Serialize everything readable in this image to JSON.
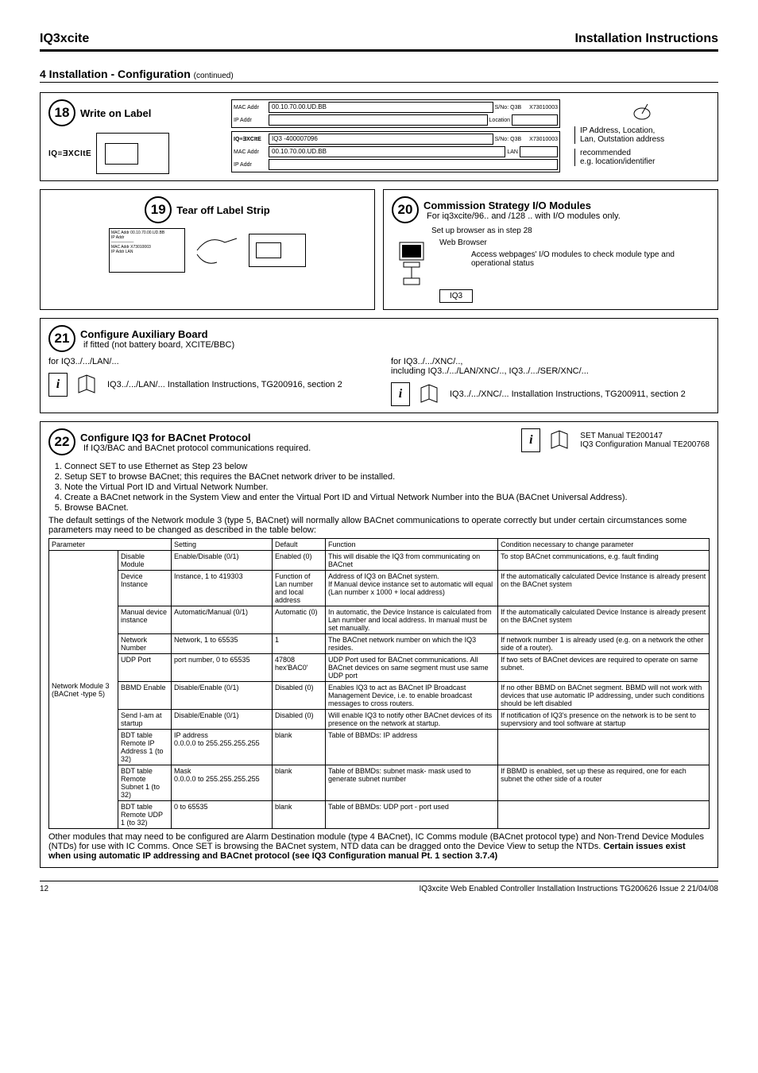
{
  "header": {
    "left": "IQ3xcite",
    "right": "Installation Instructions"
  },
  "section": {
    "title": "4 Installation - Configuration",
    "continued": "(continued)"
  },
  "step18": {
    "num": "18",
    "title": "Write on Label",
    "device_logo": "IQ≡ƎXCItE",
    "label1": {
      "mac_key": "MAC Addr",
      "mac_val": "00.10.70.00.UD.BB",
      "sno_key": "S/No:",
      "sno_val": "Q3B",
      "sno_code": "X73010003",
      "ip_key": "IP Addr",
      "loc_key": "Location"
    },
    "label2": {
      "prefix": "IQ≡ƎXCItE",
      "model": "IQ3  -400007096",
      "sno_key": "S/No:",
      "sno_val": "Q3B",
      "sno_code": "X73010003",
      "mac_key": "MAC Addr",
      "mac_val": "00.10.70.00.UD.BB",
      "lan_key": "LAN",
      "ip_key": "IP Addr"
    },
    "notes": {
      "line1": "IP Address, Location,",
      "line2": "Lan, Outstation address",
      "line3": "recommended",
      "line4": "e.g.  location/identifier"
    }
  },
  "step19": {
    "num": "19",
    "title": "Tear off Label Strip"
  },
  "step20": {
    "num": "20",
    "title": "Commission Strategy I/O Modules",
    "sub": "For iq3xcite/96.. and /128 .. with I/O  modules only.",
    "line1": "Set up browser as in step 28",
    "line2": "Web Browser",
    "line3": "Access webpages' I/O modules to check module type and operational status",
    "iq3": "IQ3"
  },
  "step21": {
    "num": "21",
    "title": "Configure Auxiliary Board",
    "sub": "if fitted (not battery board, XCITE/BBC)",
    "col1_head": "for IQ3../.../LAN/...",
    "col1_ref": "IQ3../.../LAN/... Installation Instructions, TG200916,  section 2",
    "col2_head": "for IQ3../.../XNC/..,",
    "col2_head2": "including IQ3../.../LAN/XNC/.., IQ3../.../SER/XNC/...",
    "col2_ref": "IQ3../.../XNC/... Installation Instructions, TG200911,  section 2"
  },
  "step22": {
    "num": "22",
    "title": "Configure IQ3 for BACnet Protocol",
    "sub": "If IQ3/BAC and BACnet protocol communications required.",
    "manuals": {
      "line1": "SET Manual TE200147",
      "line2": "IQ3 Configuration Manual TE200768"
    },
    "steps": [
      "Connect SET to use Ethernet as Step 23 below",
      "Setup SET to browse BACnet; this requires the BACnet network driver to be installed.",
      "Note the Virtual Port ID and Virtual Network Number.",
      "Create a BACnet network in the System View and enter the Virtual Port ID and Virtual Network Number into the BUA (BACnet Universal Address).",
      "Browse BACnet."
    ],
    "para": "The default settings of the Network module 3 (type 5, BACnet) will normally allow BACnet communications to operate correctly but under certain circumstances some parameters may need to be changed as described in the table below:",
    "table": {
      "headers": [
        "Parameter",
        "",
        "Setting",
        "Default",
        "Function",
        "Condition necessary to change parameter"
      ],
      "group_label": "Network Module 3 (BACnet -type 5)",
      "rows": [
        [
          "Disable Module",
          "Enable/Disable (0/1)",
          "Enabled (0)",
          "This will disable the IQ3 from communicating on BACnet",
          "To stop BACnet communications, e.g. fault finding"
        ],
        [
          "Device Instance",
          "Instance, 1 to 419303",
          "Function of Lan number and local address",
          "Address of IQ3 on BACnet system.\nIf Manual device instance set to automatic will equal (Lan number x 1000 + local address)",
          "If the automatically calculated Device Instance is already present on the BACnet system"
        ],
        [
          "Manual device instance",
          "Automatic/Manual (0/1)",
          "Automatic (0)",
          "In automatic, the Device Instance is calculated from Lan number and local address. In manual must be set manually.",
          "If the automatically calculated Device Instance is already present on the BACnet system"
        ],
        [
          "Network Number",
          "Network, 1 to 65535",
          "1",
          "The BACnet network number on which the IQ3 resides.",
          "If network number 1 is already used (e.g. on a network the other side of a router)."
        ],
        [
          "UDP Port",
          "port number, 0 to 65535",
          "47808 hex'BAC0'",
          "UDP Port used for BACnet communications. All BACnet devices on same segment must use same UDP port",
          "If two sets of BACnet devices are required to operate on same subnet."
        ],
        [
          "BBMD Enable",
          "Disable/Enable (0/1)",
          "Disabled (0)",
          "Enables IQ3 to act as BACnet IP Broadcast Management Device, i.e. to enable broadcast messages to cross routers.",
          "If no other BBMD on BACnet segment. BBMD will not work with devices that use automatic IP addressing, under such conditions should be left disabled"
        ],
        [
          "Send I-am at startup",
          "Disable/Enable (0/1)",
          "Disabled (0)",
          "Will enable IQ3 to notify other BACnet devices of its presence on the network at startup.",
          "If notification of IQ3's presence on the network is to be sent to supervsiory and tool software at startup"
        ],
        [
          "BDT table Remote IP Address 1 (to 32)",
          "IP address\n0.0.0.0 to 255.255.255.255",
          "blank",
          "Table of BBMDs:  IP address",
          ""
        ],
        [
          "BDT table Remote Subnet 1 (to 32)",
          "Mask\n0.0.0.0 to 255.255.255.255",
          "blank",
          "Table of BBMDs:  subnet mask- mask used to generate subnet number",
          "If BBMD is enabled, set up these as required, one for each subnet the other side of a router"
        ],
        [
          "BDT table Remote UDP 1 (to 32)",
          "0 to 65535",
          "blank",
          "Table of BBMDs:  UDP port - port used",
          ""
        ]
      ]
    },
    "after_table": "Other modules that may need to be configured are Alarm Destination module (type 4 BACnet), IC Comms module (BACnet protocol type) and Non-Trend Device Modules (NTDs) for use with IC Comms. Once SET is browsing the BACnet system, NTD data can be dragged onto the Device View to setup the NTDs.  ",
    "after_table_bold": "Certain issues exist when using automatic IP addressing and BACnet protocol (see IQ3 Configuration manual Pt. 1 section 3.7.4)"
  },
  "footer": {
    "page": "12",
    "doc": "IQ3xcite Web Enabled Controller Installation Instructions TG200626 Issue 2 21/04/08"
  }
}
